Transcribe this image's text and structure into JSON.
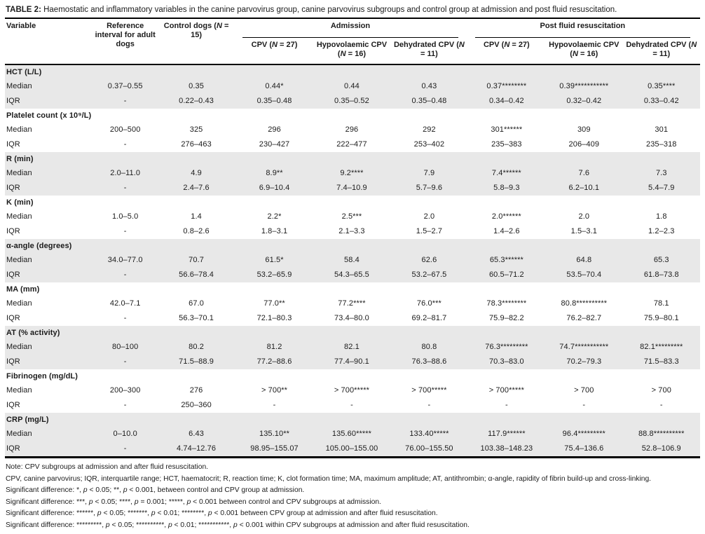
{
  "title": {
    "label": "TABLE 2:",
    "text": "Haemostatic and inflammatory variables in the canine parvovirus group, canine parvovirus subgroups and control group at admission and post fluid resuscitation."
  },
  "table": {
    "col_headers": {
      "variable": "Variable",
      "reference": "Reference interval for adult dogs",
      "control": "Control dogs (N = 15)",
      "groups": [
        {
          "label": "Admission",
          "subcols": [
            "CPV (N = 27)",
            "Hypovolaemic CPV (N = 16)",
            "Dehydrated CPV (N = 11)"
          ]
        },
        {
          "label": "Post fluid resuscitation",
          "subcols": [
            "CPV (N = 27)",
            "Hypovolaemic CPV (N = 16)",
            "Dehydrated CPV (N = 11)"
          ]
        }
      ]
    },
    "sections": [
      {
        "name": "HCT (L/L)",
        "rows": [
          {
            "label": "Median",
            "values": [
              "0.37–0.55",
              "0.35",
              "0.44*",
              "0.44",
              "0.43",
              "0.37********",
              "0.39***********",
              "0.35****"
            ]
          },
          {
            "label": "IQR",
            "values": [
              "-",
              "0.22–0.43",
              "0.35–0.48",
              "0.35–0.52",
              "0.35–0.48",
              "0.34–0.42",
              "0.32–0.42",
              "0.33–0.42"
            ]
          }
        ]
      },
      {
        "name": "Platelet count (x 10⁹/L)",
        "rows": [
          {
            "label": "Median",
            "values": [
              "200–500",
              "325",
              "296",
              "296",
              "292",
              "301******",
              "309",
              "301"
            ]
          },
          {
            "label": "IQR",
            "values": [
              "-",
              "276–463",
              "230–427",
              "222–477",
              "253–402",
              "235–383",
              "206–409",
              "235–318"
            ]
          }
        ]
      },
      {
        "name": "R (min)",
        "rows": [
          {
            "label": "Median",
            "values": [
              "2.0–11.0",
              "4.9",
              "8.9**",
              "9.2****",
              "7.9",
              "7.4******",
              "7.6",
              "7.3"
            ]
          },
          {
            "label": "IQR",
            "values": [
              "-",
              "2.4–7.6",
              "6.9–10.4",
              "7.4–10.9",
              "5.7–9.6",
              "5.8–9.3",
              "6.2–10.1",
              "5.4–7.9"
            ]
          }
        ]
      },
      {
        "name": "K (min)",
        "rows": [
          {
            "label": "Median",
            "values": [
              "1.0–5.0",
              "1.4",
              "2.2*",
              "2.5***",
              "2.0",
              "2.0******",
              "2.0",
              "1.8"
            ]
          },
          {
            "label": "IQR",
            "values": [
              "-",
              "0.8–2.6",
              "1.8–3.1",
              "2.1–3.3",
              "1.5–2.7",
              "1.4–2.6",
              "1.5–3.1",
              "1.2–2.3"
            ]
          }
        ]
      },
      {
        "name": "α-angle (degrees)",
        "rows": [
          {
            "label": "Median",
            "values": [
              "34.0–77.0",
              "70.7",
              "61.5*",
              "58.4",
              "62.6",
              "65.3******",
              "64.8",
              "65.3"
            ]
          },
          {
            "label": "IQR",
            "values": [
              "-",
              "56.6–78.4",
              "53.2–65.9",
              "54.3–65.5",
              "53.2–67.5",
              "60.5–71.2",
              "53.5–70.4",
              "61.8–73.8"
            ]
          }
        ]
      },
      {
        "name": "MA (mm)",
        "rows": [
          {
            "label": "Median",
            "values": [
              "42.0–7.1",
              "67.0",
              "77.0**",
              "77.2****",
              "76.0***",
              "78.3********",
              "80.8**********",
              "78.1"
            ]
          },
          {
            "label": "IQR",
            "values": [
              "-",
              "56.3–70.1",
              "72.1–80.3",
              "73.4–80.0",
              "69.2–81.7",
              "75.9–82.2",
              "76.2–82.7",
              "75.9–80.1"
            ]
          }
        ]
      },
      {
        "name": "AT (% activity)",
        "rows": [
          {
            "label": "Median",
            "values": [
              "80–100",
              "80.2",
              "81.2",
              "82.1",
              "80.8",
              "76.3*********",
              "74.7***********",
              "82.1*********"
            ]
          },
          {
            "label": "IQR",
            "values": [
              "-",
              "71.5–88.9",
              "77.2–88.6",
              "77.4–90.1",
              "76.3–88.6",
              "70.3–83.0",
              "70.2–79.3",
              "71.5–83.3"
            ]
          }
        ]
      },
      {
        "name": "Fibrinogen (mg/dL)",
        "rows": [
          {
            "label": "Median",
            "values": [
              "200–300",
              "276",
              "> 700**",
              "> 700*****",
              "> 700*****",
              "> 700*****",
              "> 700",
              "> 700"
            ]
          },
          {
            "label": "IQR",
            "values": [
              "-",
              "250–360",
              "-",
              "-",
              "-",
              "-",
              "-",
              "-"
            ]
          }
        ]
      },
      {
        "name": "CRP (mg/L)",
        "rows": [
          {
            "label": "Median",
            "values": [
              "0–10.0",
              "6.43",
              "135.10**",
              "135.60*****",
              "133.40*****",
              "117.9******",
              "96.4*********",
              "88.8**********"
            ]
          },
          {
            "label": "IQR",
            "values": [
              "-",
              "4.74–12.76",
              "98.95–155.07",
              "105.00–155.00",
              "76.00–155.50",
              "103.38–148.23",
              "75.4–136.6",
              "52.8–106.9"
            ]
          }
        ]
      }
    ]
  },
  "footnotes": [
    "Note: CPV subgroups at admission and after fluid resuscitation.",
    "CPV, canine parvovirus; IQR, interquartile range; HCT, haematocrit; R, reaction time; K, clot formation time; MA, maximum amplitude; AT, antithrombin; α-angle, rapidity of fibrin build-up and cross-linking.",
    "Significant difference: *, p < 0.05; **, p < 0.001, between control and CPV group at admission.",
    "Significant difference: ***, p < 0.05; ****, p = 0.001; *****, p < 0.001 between control and CPV subgroups at admission.",
    "Significant difference: ******, p < 0.05; *******, p < 0.01; ********, p < 0.001 between CPV group at admission and after fluid resuscitation.",
    "Significant difference: *********, p < 0.05; **********, p < 0.01; ***********, p < 0.001 within CPV subgroups at admission and after fluid resuscitation."
  ]
}
